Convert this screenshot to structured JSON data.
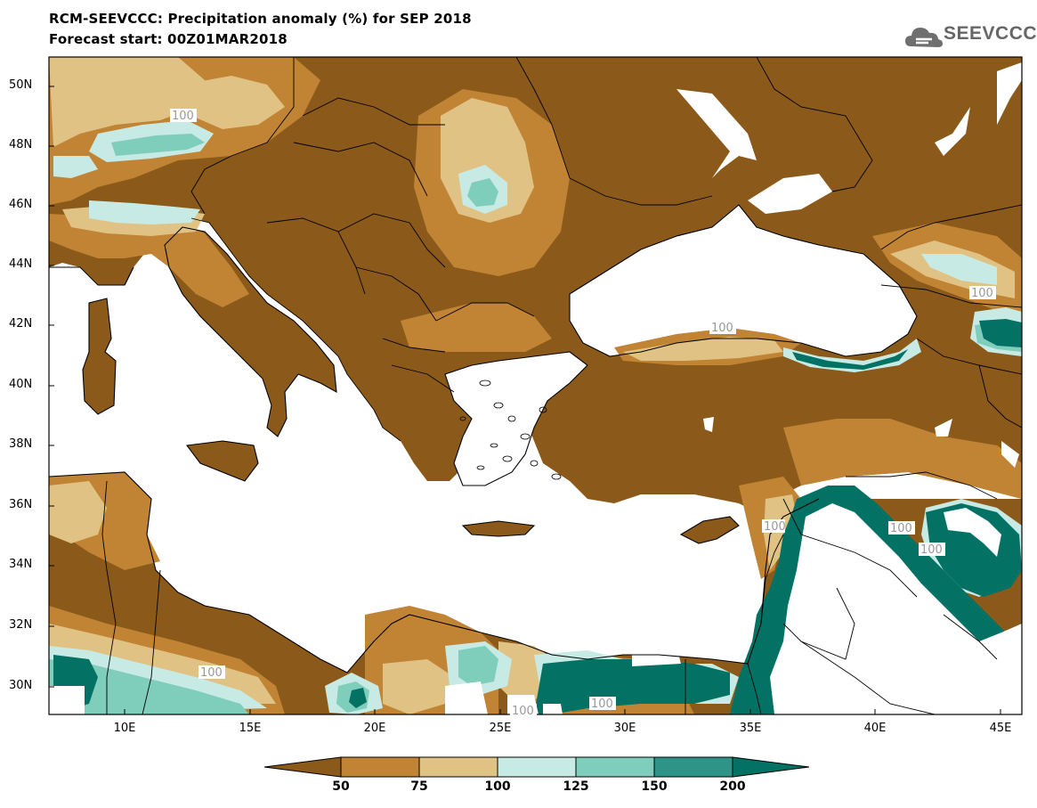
{
  "title": {
    "line1": "RCM-SEEVCCC: Precipitation anomaly (%) for SEP 2018",
    "line2": "Forecast start: 00Z01MAR2018"
  },
  "logo": {
    "text": "SEEVCCC"
  },
  "axes": {
    "lat_labels": [
      "50N",
      "48N",
      "46N",
      "44N",
      "42N",
      "40N",
      "38N",
      "36N",
      "34N",
      "32N",
      "30N"
    ],
    "lon_labels": [
      "10E",
      "15E",
      "20E",
      "25E",
      "30E",
      "35E",
      "40E",
      "45E"
    ]
  },
  "contour_labels": [
    "100",
    "100",
    "100",
    "100",
    "100",
    "100",
    "100",
    "100",
    "100",
    "100"
  ],
  "colorbar": {
    "labels": [
      "50",
      "75",
      "100",
      "125",
      "150",
      "200"
    ],
    "colors": [
      "#8b5a1a",
      "#c08434",
      "#e0c384",
      "#c7eae4",
      "#7fcdbb",
      "#2f9488",
      "#037164"
    ]
  },
  "palette": {
    "very_dry": "#8b5a1a",
    "dry": "#c08434",
    "slightly_dry": "#e0c384",
    "slightly_wet": "#c7eae4",
    "wet": "#7fcdbb",
    "very_wet": "#037164",
    "sea": "#ffffff"
  }
}
